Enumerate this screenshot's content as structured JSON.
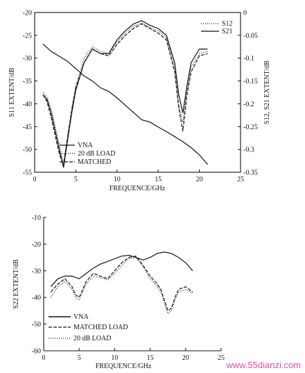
{
  "watermark": "www.55dianzi.com",
  "chart_data": [
    {
      "type": "line",
      "x_label": "FREQUENCE/GHz",
      "y_label": "S11 EXTENT/dB",
      "y2_label": "S12, S21 EXTENT/dB",
      "x_ticks": [
        "0",
        "5",
        "10",
        "15",
        "20",
        "25"
      ],
      "y_ticks": [
        "-20",
        "-25",
        "-30",
        "-35",
        "-40",
        "-45",
        "-50",
        "-55"
      ],
      "y2_ticks": [
        "0",
        "-0.05",
        "-0.1",
        "-0.15",
        "-0.2",
        "-0.25",
        "-0.3",
        "-0.35"
      ],
      "xlim": [
        0,
        25
      ],
      "ylim": [
        -55,
        -20
      ],
      "y2lim": [
        -0.35,
        0
      ],
      "grid": false,
      "legend_left": [
        "VNA",
        "20 dB LOAD",
        "MATCHED"
      ],
      "legend_right": [
        "S12",
        "S21"
      ],
      "series": [
        {
          "name": "VNA",
          "axis": "left",
          "style": "solid",
          "x": [
            1,
            1.5,
            2,
            2.5,
            3,
            3.5,
            4,
            4.5,
            5,
            6,
            7,
            8,
            9,
            10,
            11,
            12,
            13,
            14,
            15,
            16,
            17,
            17.5,
            18,
            18.5,
            19,
            20,
            21
          ],
          "y": [
            -38,
            -39,
            -42,
            -46,
            -50,
            -54,
            -48,
            -42,
            -37,
            -31,
            -28,
            -29,
            -29,
            -26,
            -24,
            -22.5,
            -21.8,
            -22.8,
            -23.5,
            -25,
            -31,
            -38,
            -42,
            -36,
            -31,
            -28,
            -28
          ]
        },
        {
          "name": "20 dB LOAD",
          "axis": "left",
          "style": "dotted",
          "x": [
            1,
            1.5,
            2,
            2.5,
            3,
            3.5,
            4,
            4.5,
            5,
            6,
            7,
            8,
            9,
            10,
            11,
            12,
            13,
            14,
            15,
            16,
            17,
            17.5,
            18,
            18.5,
            19,
            20,
            21
          ],
          "y": [
            -37.5,
            -38.5,
            -41,
            -45,
            -49,
            -53,
            -47,
            -41,
            -36,
            -30,
            -27.5,
            -28.5,
            -29,
            -26.5,
            -24.5,
            -23,
            -22.3,
            -23.3,
            -24,
            -25.5,
            -32,
            -40,
            -44,
            -37,
            -32,
            -29,
            -28.5
          ]
        },
        {
          "name": "MATCHED",
          "axis": "left",
          "style": "dashed",
          "x": [
            1,
            1.5,
            2,
            2.5,
            3,
            3.5,
            4,
            4.5,
            5,
            6,
            7,
            8,
            9,
            10,
            11,
            12,
            13,
            14,
            15,
            16,
            17,
            17.5,
            18,
            18.5,
            19,
            20,
            21
          ],
          "y": [
            -38,
            -39.5,
            -43,
            -47,
            -51,
            -53.5,
            -47.5,
            -41.5,
            -36.5,
            -31,
            -28,
            -29,
            -29.5,
            -27,
            -25,
            -23.5,
            -22.5,
            -23.5,
            -24.5,
            -26,
            -33,
            -41,
            -46,
            -38,
            -33,
            -29.5,
            -29
          ]
        },
        {
          "name": "S21",
          "axis": "right",
          "style": "solid",
          "x": [
            1,
            1.5,
            2,
            3,
            4,
            5,
            6,
            7,
            8,
            9,
            10,
            11,
            12,
            13,
            14,
            15,
            16,
            17,
            18,
            19,
            20,
            21
          ],
          "y": [
            -0.069,
            -0.077,
            -0.085,
            -0.096,
            -0.107,
            -0.123,
            -0.139,
            -0.15,
            -0.165,
            -0.173,
            -0.187,
            -0.203,
            -0.219,
            -0.235,
            -0.24,
            -0.251,
            -0.261,
            -0.272,
            -0.283,
            -0.296,
            -0.312,
            -0.333
          ]
        }
      ]
    },
    {
      "type": "line",
      "x_label": "FREQUENCE/GHz",
      "y_label": "S22 EXTENT/dB",
      "x_ticks": [
        "0",
        "5",
        "10",
        "15",
        "20",
        "25"
      ],
      "y_ticks": [
        "-10",
        "-20",
        "-30",
        "-40",
        "-50",
        "-60"
      ],
      "xlim": [
        0,
        25
      ],
      "ylim": [
        -60,
        -10
      ],
      "grid": false,
      "legend": [
        "VNA",
        "MATCHED LOAD",
        "20 dB LOAD"
      ],
      "series": [
        {
          "name": "VNA",
          "style": "solid",
          "x": [
            1,
            2,
            3,
            4,
            5,
            6,
            7,
            8,
            9,
            10,
            11,
            12,
            13,
            14,
            15,
            16,
            17,
            18,
            19,
            20,
            21
          ],
          "y": [
            -36,
            -33,
            -32,
            -32,
            -33,
            -31,
            -29,
            -27.5,
            -26.5,
            -25.5,
            -24.5,
            -24.2,
            -25,
            -26,
            -25,
            -23.5,
            -23,
            -23.5,
            -25,
            -27,
            -30
          ]
        },
        {
          "name": "MATCHED LOAD",
          "style": "dashed",
          "x": [
            1,
            2,
            3,
            4,
            4.5,
            5,
            5.5,
            6,
            7,
            8,
            9,
            10,
            11,
            12,
            13,
            14,
            15,
            16,
            16.5,
            17,
            17.5,
            18,
            18.5,
            19,
            20,
            21
          ],
          "y": [
            -38,
            -35,
            -33,
            -36,
            -39,
            -40,
            -37,
            -34,
            -31,
            -32,
            -33,
            -30,
            -27,
            -25,
            -24.5,
            -28,
            -32,
            -35,
            -37,
            -41,
            -45,
            -44,
            -40,
            -37,
            -36,
            -38
          ]
        },
        {
          "name": "20 dB LOAD",
          "style": "dotted",
          "x": [
            1,
            2,
            3,
            4,
            4.5,
            5,
            5.5,
            6,
            7,
            8,
            9,
            10,
            11,
            12,
            13,
            14,
            15,
            16,
            16.5,
            17,
            17.5,
            18,
            18.5,
            19,
            20,
            21
          ],
          "y": [
            -40,
            -36,
            -34,
            -37,
            -40,
            -41,
            -38,
            -35,
            -32,
            -32.5,
            -33.5,
            -31,
            -28,
            -25.5,
            -25,
            -28.5,
            -33,
            -36,
            -38,
            -42,
            -46,
            -45,
            -41,
            -38,
            -37,
            -38.5
          ]
        }
      ]
    }
  ]
}
